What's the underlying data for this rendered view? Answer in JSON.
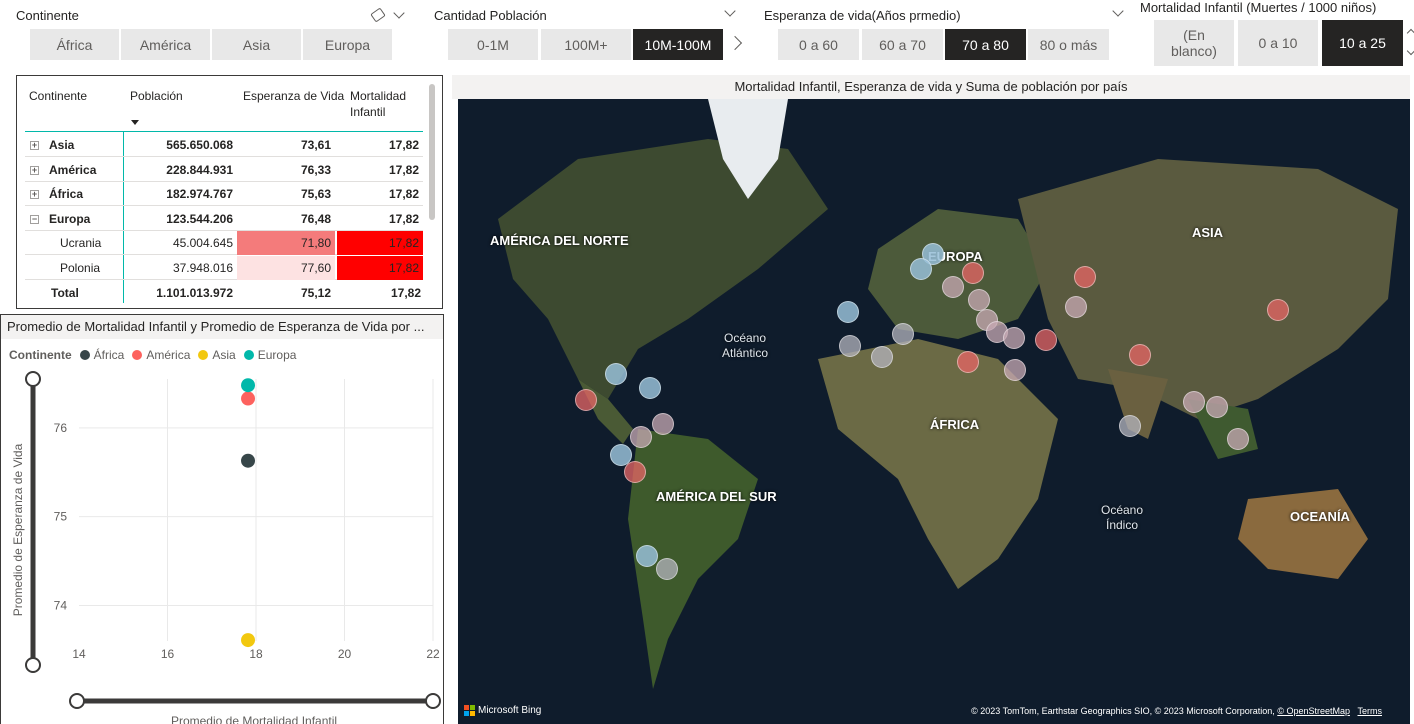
{
  "slicers": {
    "continente": {
      "title": "Continente",
      "options": [
        "África",
        "América",
        "Asia",
        "Europa"
      ],
      "selected": []
    },
    "poblacion": {
      "title": "Cantidad Población",
      "options": [
        "0-1M",
        "100M+",
        "10M-100M"
      ],
      "selected": "10M-100M"
    },
    "esperanza": {
      "title": "Esperanza de vida(Años prmedio)",
      "options": [
        "0 a 60",
        "60 a 70",
        "70 a 80",
        "80 o más"
      ],
      "selected": "70 a 80"
    },
    "mortalidad": {
      "title": "Mortalidad Infantil (Muertes / 1000 niños)",
      "options": [
        "(En blanco)",
        "0 a 10",
        "10 a 25"
      ],
      "selected": "10 a 25"
    }
  },
  "matrix": {
    "headers": [
      "Continente",
      "Población",
      "Esperanza de Vida",
      "Mortalidad Infantil"
    ],
    "rows": [
      {
        "name": "Asia",
        "poblacion": "565.650.068",
        "esperanza": "73,61",
        "mortalidad": "17,82",
        "level": 0,
        "expanded": false
      },
      {
        "name": "América",
        "poblacion": "228.844.931",
        "esperanza": "76,33",
        "mortalidad": "17,82",
        "level": 0,
        "expanded": false
      },
      {
        "name": "África",
        "poblacion": "182.974.767",
        "esperanza": "75,63",
        "mortalidad": "17,82",
        "level": 0,
        "expanded": false
      },
      {
        "name": "Europa",
        "poblacion": "123.544.206",
        "esperanza": "76,48",
        "mortalidad": "17,82",
        "level": 0,
        "expanded": true
      },
      {
        "name": "Ucrania",
        "poblacion": "45.004.645",
        "esperanza": "71,80",
        "mortalidad": "17,82",
        "level": 1,
        "esperanza_color": "#f47b7b",
        "mortalidad_color": "#ff0000"
      },
      {
        "name": "Polonia",
        "poblacion": "37.948.016",
        "esperanza": "77,60",
        "mortalidad": "17,82",
        "level": 1,
        "esperanza_color": "#fde2e2",
        "mortalidad_color": "#ff0000"
      }
    ],
    "total": {
      "name": "Total",
      "poblacion": "1.101.013.972",
      "esperanza": "75,12",
      "mortalidad": "17,82"
    }
  },
  "scatter": {
    "title": "Promedio de Mortalidad Infantil y Promedio de Esperanza de Vida por ...",
    "legend_title": "Continente",
    "legend": [
      {
        "name": "África",
        "color": "#374649"
      },
      {
        "name": "América",
        "color": "#fd625e"
      },
      {
        "name": "Asia",
        "color": "#f2c80f"
      },
      {
        "name": "Europa",
        "color": "#01b8aa"
      }
    ]
  },
  "chart_data": {
    "type": "scatter",
    "title": "Promedio de Mortalidad Infantil y Promedio de Esperanza de Vida por ...",
    "xlabel": "Promedio de Mortalidad Infantil",
    "ylabel": "Promedio de Esperanza de Vida",
    "xlim": [
      14,
      22
    ],
    "ylim": [
      73.6,
      76.55
    ],
    "x_ticks": [
      14,
      16,
      18,
      20,
      22
    ],
    "y_ticks": [
      74,
      75,
      76
    ],
    "grid": true,
    "legend_position": "top-left",
    "series": [
      {
        "name": "África",
        "color": "#374649",
        "points": [
          {
            "x": 17.82,
            "y": 75.63
          }
        ]
      },
      {
        "name": "América",
        "color": "#fd625e",
        "points": [
          {
            "x": 17.82,
            "y": 76.33
          }
        ]
      },
      {
        "name": "Asia",
        "color": "#f2c80f",
        "points": [
          {
            "x": 17.82,
            "y": 73.61
          }
        ]
      },
      {
        "name": "Europa",
        "color": "#01b8aa",
        "points": [
          {
            "x": 17.82,
            "y": 76.48
          }
        ]
      }
    ]
  },
  "map": {
    "title": "Mortalidad Infantil, Esperanza de vida y Suma de población por país",
    "labels": {
      "na": "AMÉRICA DEL NORTE",
      "europa": "EUROPA",
      "asia": "ASIA",
      "africa": "ÁFRICA",
      "sa": "AMÉRICA DEL SUR",
      "oceania": "OCEANÍA",
      "atlantico": "Océano Atlántico",
      "indico": "Océano Índico"
    },
    "bing": "Microsoft Bing",
    "credits_prefix": "© 2023 TomTom, Earthstar Geographics SIO, © 2023 Microsoft Corporation, ",
    "credits_osm": "© OpenStreetMap",
    "credits_terms": "Terms"
  }
}
